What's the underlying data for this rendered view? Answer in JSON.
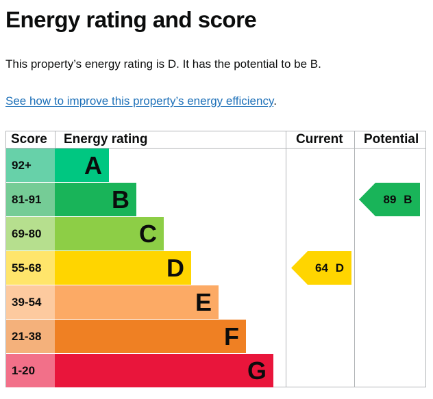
{
  "heading": "Energy rating and score",
  "summary": "This property’s energy rating is D. It has the potential to be B.",
  "improve_link": "See how to improve this property’s energy efficiency",
  "improve_link_suffix": ".",
  "table": {
    "headers": {
      "score": "Score",
      "rating": "Energy rating",
      "current": "Current",
      "potential": "Potential"
    },
    "bands": [
      {
        "score": "92+",
        "letter": "A",
        "color": "#00c781",
        "score_bg": "#67d1a9"
      },
      {
        "score": "81-91",
        "letter": "B",
        "color": "#19b459",
        "score_bg": "#75cc96"
      },
      {
        "score": "69-80",
        "letter": "C",
        "color": "#8dce46",
        "score_bg": "#b6df8e"
      },
      {
        "score": "55-68",
        "letter": "D",
        "color": "#ffd500",
        "score_bg": "#ffe56b"
      },
      {
        "score": "39-54",
        "letter": "E",
        "color": "#fcaa65",
        "score_bg": "#fdca9f"
      },
      {
        "score": "21-38",
        "letter": "F",
        "color": "#ef8023",
        "score_bg": "#f4b17b"
      },
      {
        "score": "1-20",
        "letter": "G",
        "color": "#e9153b",
        "score_bg": "#f27089"
      }
    ],
    "current": {
      "value": "64",
      "letter": "D",
      "color": "#ffd500"
    },
    "potential": {
      "value": "89",
      "letter": "B",
      "color": "#19b459"
    }
  }
}
